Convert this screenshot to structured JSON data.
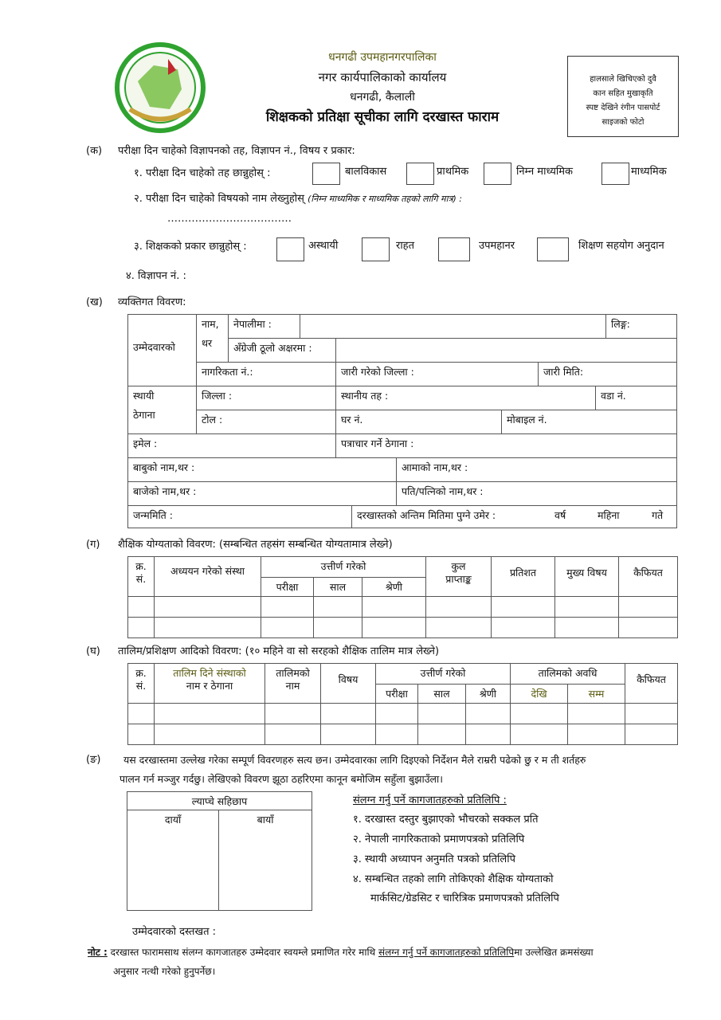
{
  "header": {
    "org": "धनगढी उपमहानगरपालिका",
    "office": "नगर कार्यपालिकाको कार्यालय",
    "location": "धनगढी, कैलाली",
    "title": "शिक्षकको प्रतिक्षा सूचीका लागि दरखास्त फाराम",
    "photo_text": [
      "हालसाले खिचिएको दुवै",
      "कान सहित मुखाकृति",
      "स्पष्ट देखिने रंगीन पासपोर्ट",
      "साइजको फोटो"
    ],
    "logo_colors": {
      "ring": "#2fa32f",
      "fill": "#8cc860"
    }
  },
  "sec_ka": {
    "label": "(क)",
    "heading": "परीक्षा दिन चाहेको विज्ञापनको तह, विज्ञापन नं., विषय र प्रकार:",
    "q1": "१. परीक्षा दिन चाहेको तह छान्नुहोस् :",
    "levels": [
      "बालविकास",
      "प्राथमिक",
      "निम्न माध्यमिक",
      "माध्यमिक"
    ],
    "q2": "२. परीक्षा दिन चाहेको विषयको नाम लेख्नुहोस्",
    "q2_note": "(निम्न माध्यमिक र माध्यमिक तहको लागि मात्र) :",
    "dots": "………………………………",
    "q3": "३. शिक्षकको प्रकार छान्नुहोस् :",
    "types": [
      "अस्थायी",
      "राहत",
      "उपमहानर",
      "शिक्षण सहयोग अनुदान"
    ],
    "q4": "४. विज्ञापन नं. :"
  },
  "sec_kha": {
    "label": "(ख)",
    "heading": "व्यक्तिगत विवरण:",
    "candidate": "उम्मेदवारको",
    "name": "नाम,",
    "surname": "थर",
    "nepali": "नेपालीमा :",
    "gender": "लिङ्ग:",
    "english": "अँग्रेजी ठूलो अक्षरमा :",
    "citizenship": "नागरिकता नं.:",
    "issued_district": "जारी गरेको जिल्ला :",
    "issued_date": "जारी मिति:",
    "perm": "स्थायी",
    "address": "ठेगाना",
    "district": "जिल्ला :",
    "local": "स्थानीय तह :",
    "ward": "वडा नं.",
    "tole": "टोल :",
    "house": "घर नं.",
    "mobile": "मोबाइल नं.",
    "email": "इमेल :",
    "postal": "पत्राचार गर्ने ठेगाना :",
    "father": "बाबुको नाम,थर :",
    "mother": "आमाको नाम,थर :",
    "grandfather": "बाजेको नाम,थर :",
    "spouse": "पति/पत्निको नाम,थर :",
    "dob": "जन्ममिति :",
    "age": "दरखास्तको अन्तिम मितिमा पुग्ने उमेर :",
    "years": "वर्ष",
    "months": "महिना",
    "days": "गते"
  },
  "sec_ga": {
    "label": "(ग)",
    "heading": "शैक्षिक योग्यताको विवरण: (सम्बन्धित तहसंग सम्बन्धित योग्यतामात्र लेख्ने)",
    "sn1": "क्र.",
    "sn2": "सं.",
    "institution": "अध्ययन गरेको संस्था",
    "passed": "उत्तीर्ण गरेको",
    "exam": "परीक्षा",
    "year": "साल",
    "division": "श्रेणी",
    "total1": "कुल",
    "total2": "प्राप्ताङ्क",
    "percent": "प्रतिशत",
    "major": "मुख्य विषय",
    "remarks": "कैफियत"
  },
  "sec_gha": {
    "label": "(घ)",
    "heading": "तालिम/प्रशिक्षण आदिको विवरण: (१० महिने वा सो सरहको शैक्षिक तालिम मात्र लेख्ने)",
    "sn1": "क्र.",
    "sn2": "सं.",
    "inst1": "तालिम दिने संस्थाको",
    "inst2": "नाम र ठेगाना",
    "tname1": "तालिमको",
    "tname2": "नाम",
    "subject": "विषय",
    "passed": "उत्तीर्ण गरेको",
    "exam": "परीक्षा",
    "year": "साल",
    "division": "श्रेणी",
    "duration": "तालिमको अवधि",
    "from": "देखि",
    "to": "सम्म",
    "remarks": "कैफियत"
  },
  "sec_nga": {
    "label": "(ङ)",
    "line1": "यस दरखास्तमा उल्लेख गरेका सम्पूर्ण विवरणहरु सत्य छन। उम्मेदवारका लागि दिइएको निर्देशन मैले राम्ररी पढेको छु र म ती शर्तहरु",
    "line2": "पालन गर्न मञ्जुर गर्दछु। लेखिएको विवरण झूठा ठहरिएमा कानून बमोजिम सहुँला बुझाउँला।",
    "thumb": "ल्याप्चे सहिछाप",
    "right": "दायाँ",
    "left": "बायाँ",
    "attach_heading": "संलग्न गर्नु पर्ने कागजातहरुको प्रतिलिपि :",
    "attachments": [
      "१. दरखास्त दस्तुर बुझाएको भौचरको सक्कल प्रति",
      "२. नेपाली नागरिकताको प्रमाणपत्रको प्रतिलिपि",
      "३.  स्थायी अध्यापन अनुमति पत्रको प्रतिलिपि",
      "४.  सम्बन्धित तहको लागि तोकिएको शैक्षिक योग्यताको",
      "मार्कसिट/ग्रेडसिट र चारित्रिक प्रमाणपत्रको प्रतिलिपि"
    ],
    "signature": "उम्मेदवारको दस्तखत :"
  },
  "note": {
    "label": "नोट :",
    "text1": "दरखास्त फारामसाथ संलग्न कागजातहरु उम्मेदवार स्वयम्ले प्रमाणित गरेर माथि ",
    "text_u": "संलग्न गर्नु पर्ने कागजातहरुको प्रतिलिपि",
    "text2": "मा उल्लेखित क्रमसंख्या",
    "line2": "अनुसार नत्थी गरेको हुनुपर्नेछ।"
  }
}
